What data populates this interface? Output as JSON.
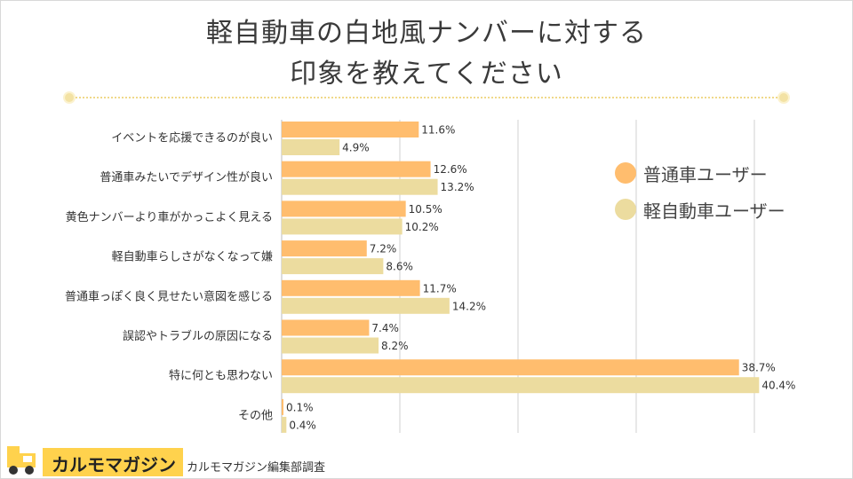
{
  "title": {
    "line1": "軽自動車の白地風ナンバーに対する",
    "line2": "印象を教えてください"
  },
  "legend": {
    "futsu": "普通車ユーザー",
    "kei": "軽自動車ユーザー"
  },
  "colors": {
    "futsu": "#ffbd6e",
    "kei": "#ecdc9f",
    "grid": "#d0d0d0",
    "divider": "#f0d98a",
    "brand": "#ffd24d"
  },
  "chart_data": {
    "type": "bar",
    "orientation": "horizontal",
    "categories": [
      "イベントを応援できるのが良い",
      "普通車みたいでデザイン性が良い",
      "黄色ナンバーより車がかっこよく見える",
      "軽自動車らしさがなくなって嫌",
      "普通車っぽく良く見せたい意図を感じる",
      "誤認やトラブルの原因になる",
      "特に何とも思わない",
      "その他"
    ],
    "series": [
      {
        "name": "普通車ユーザー",
        "values": [
          11.6,
          12.6,
          10.5,
          7.2,
          11.7,
          7.4,
          38.7,
          0.1
        ]
      },
      {
        "name": "軽自動車ユーザー",
        "values": [
          4.9,
          13.2,
          10.2,
          8.6,
          14.2,
          8.2,
          40.4,
          0.4
        ]
      }
    ],
    "value_suffix": "%",
    "xlim": [
      0,
      40
    ],
    "grid": "vertical",
    "legend_position": "right"
  },
  "footer": {
    "logo": "カルモマガジン",
    "credit": "カルモマガジン編集部調査",
    "logo_icon": "truck-icon"
  }
}
